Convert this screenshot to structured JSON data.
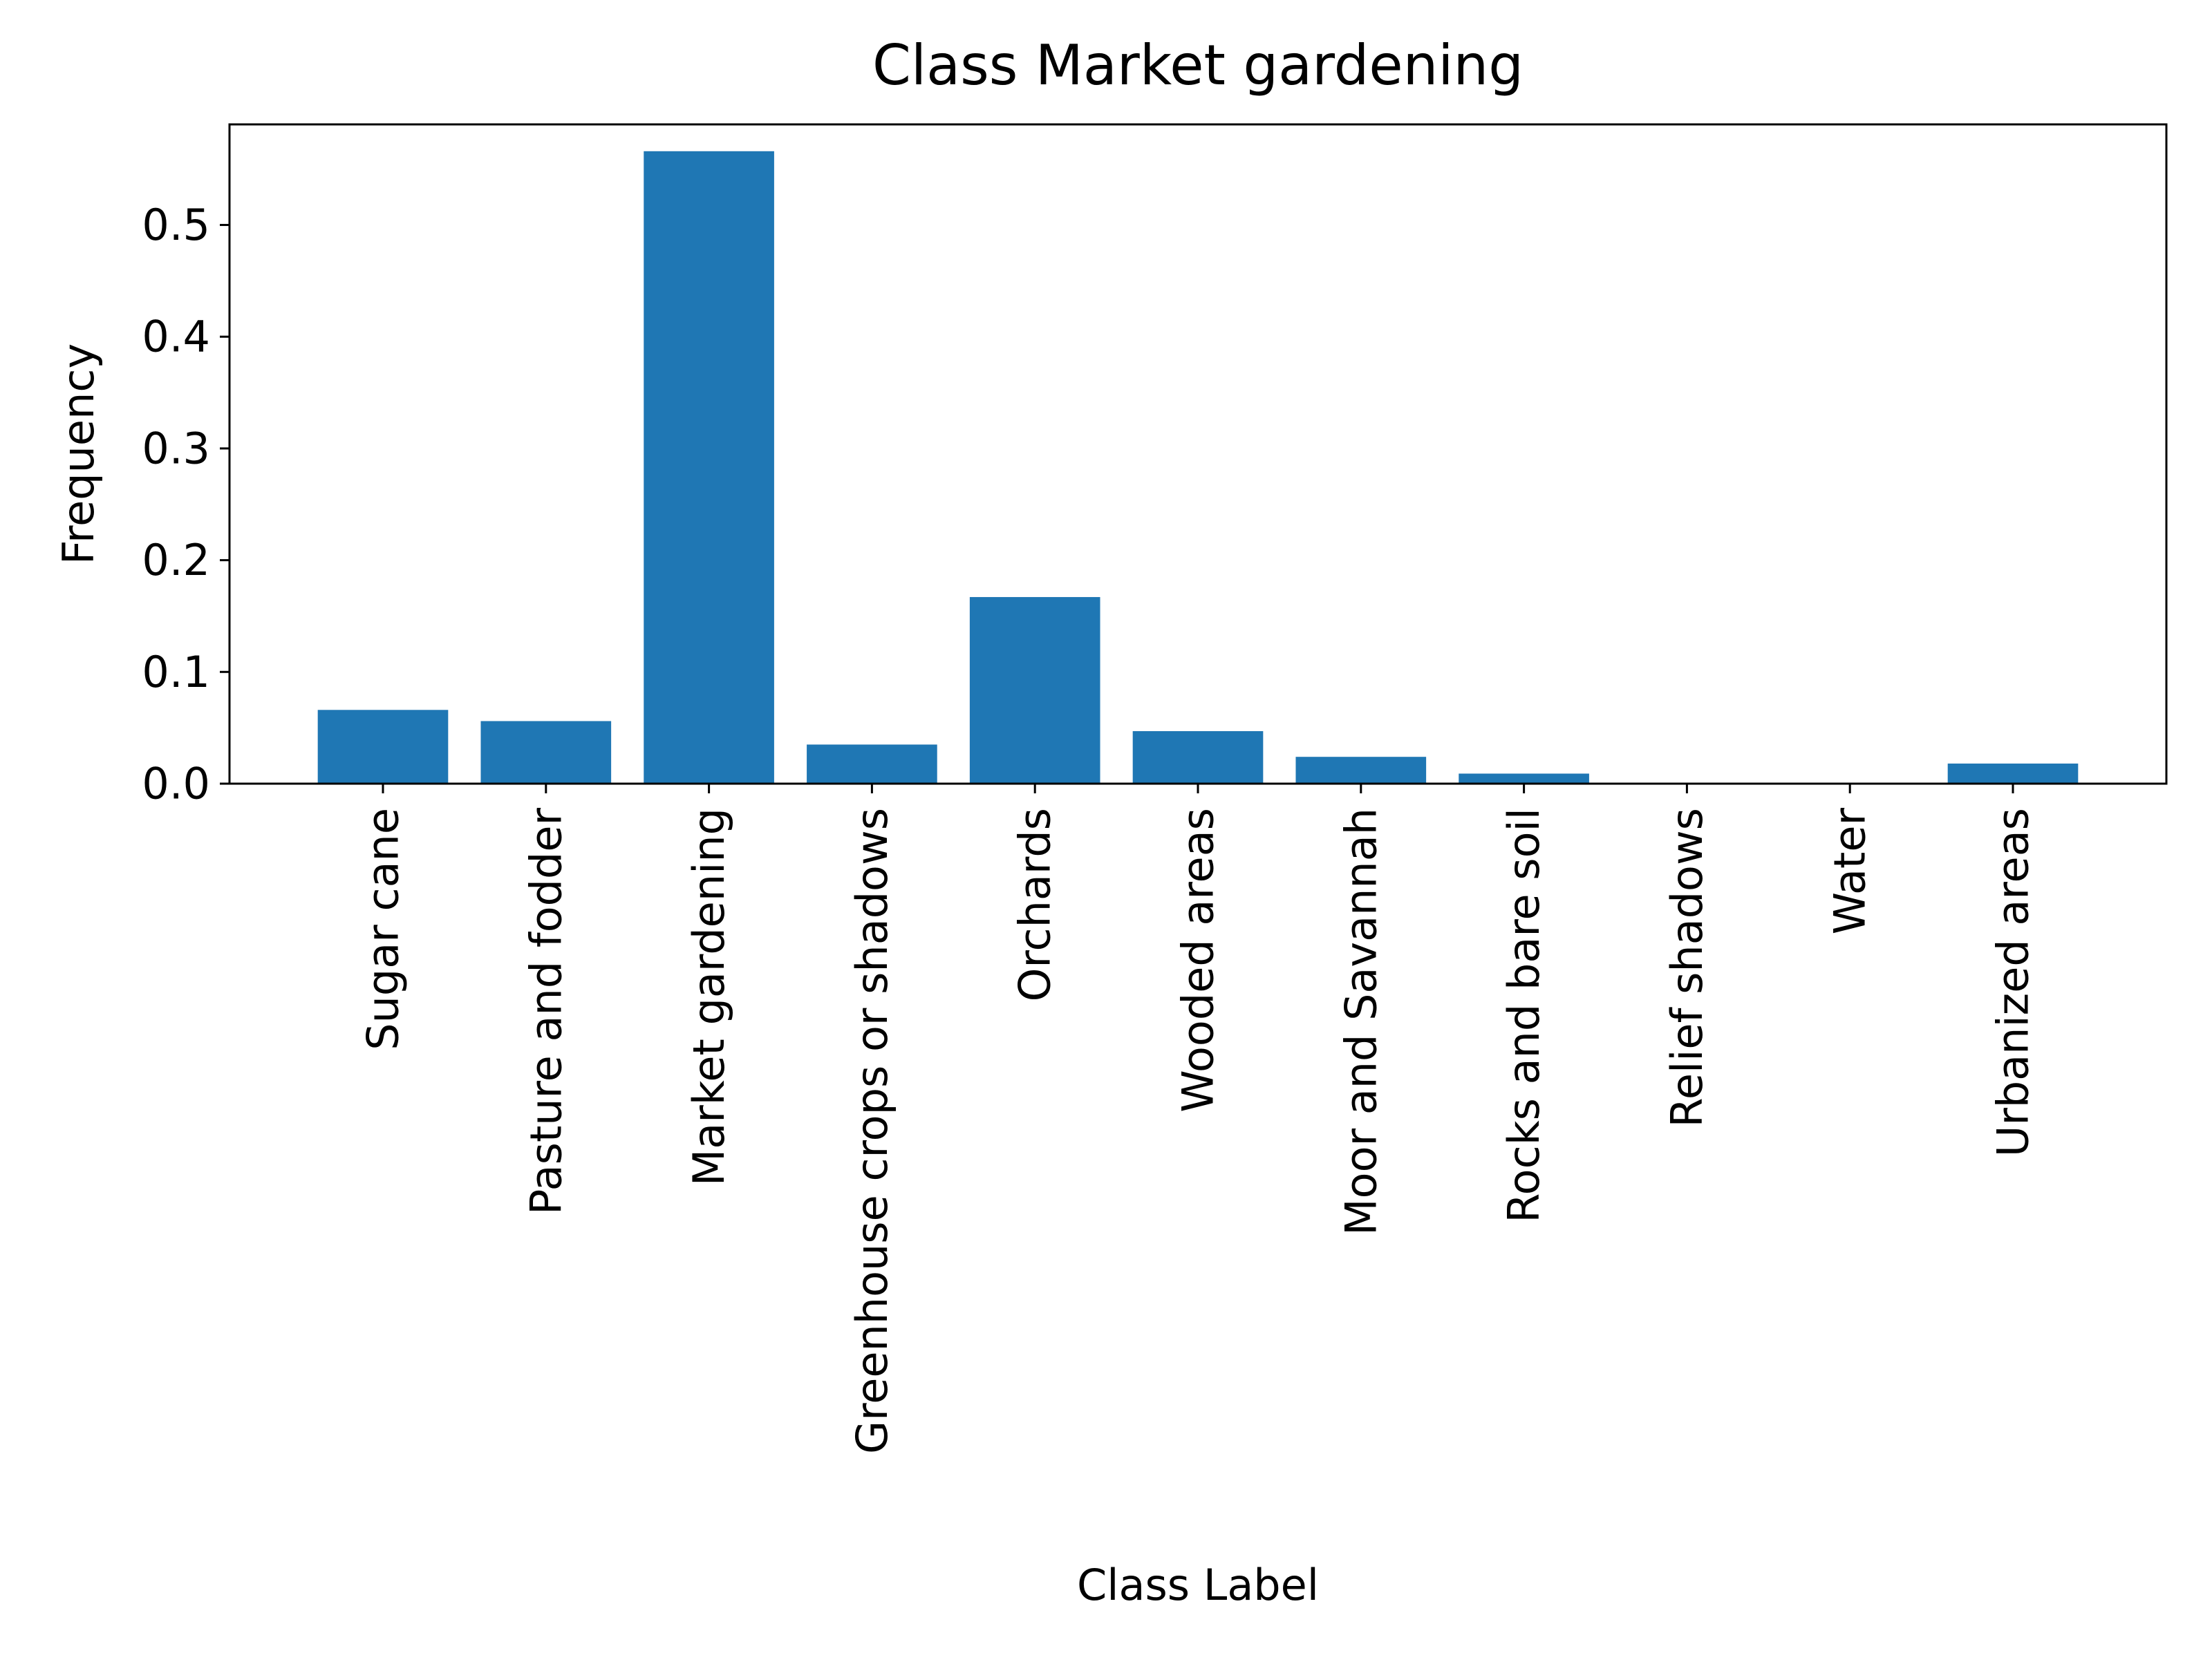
{
  "chart_data": {
    "type": "bar",
    "title": "Class Market gardening",
    "xlabel": "Class Label",
    "ylabel": "Frequency",
    "categories": [
      "Sugar cane",
      "Pasture and fodder",
      "Market gardening",
      "Greenhouse crops or shadows",
      "Orchards",
      "Wooded areas",
      "Moor and Savannah",
      "Rocks and bare soil",
      "Relief shadows",
      "Water",
      "Urbanized areas"
    ],
    "values": [
      0.066,
      0.056,
      0.566,
      0.035,
      0.167,
      0.047,
      0.024,
      0.009,
      0.0,
      0.0,
      0.018
    ],
    "ylim": [
      0,
      0.59
    ],
    "yticks": [
      0.0,
      0.1,
      0.2,
      0.3,
      0.4,
      0.5
    ],
    "ytick_labels": [
      "0.0",
      "0.1",
      "0.2",
      "0.3",
      "0.4",
      "0.5"
    ],
    "grid": false,
    "bar_color": "#1f77b4"
  }
}
